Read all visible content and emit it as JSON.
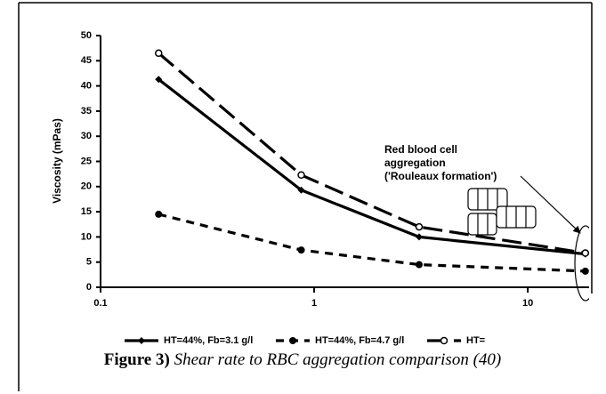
{
  "chart_data": {
    "type": "line",
    "y_label": "Viscosity (mPas)",
    "xscale": "log",
    "xlim": [
      0.1,
      19
    ],
    "xticks": [
      0.1,
      1,
      10
    ],
    "ylim": [
      0,
      50
    ],
    "yticks": [
      0,
      5,
      10,
      15,
      20,
      25,
      30,
      35,
      40,
      45,
      50
    ],
    "annotation": [
      "Red blood cell",
      "aggregation",
      "('Rouleaux formation')"
    ],
    "series": [
      {
        "name": "HT=44%, Fb=3.1 g/l",
        "color": "#000000",
        "dash": "solid",
        "marker": "diamond",
        "x": [
          0.187,
          0.87,
          3.1,
          18.6
        ],
        "values": [
          41.3,
          19.3,
          10,
          6.6
        ]
      },
      {
        "name": "HT=44%, Fb=4.7 g/l",
        "color": "#000000",
        "dash": "short",
        "marker": "filled-circle",
        "x": [
          0.187,
          0.87,
          3.1,
          18.6
        ],
        "values": [
          14.5,
          7.4,
          4.5,
          3.2
        ]
      },
      {
        "name": "HT=",
        "color": "#000000",
        "dash": "long",
        "marker": "open-circle",
        "x": [
          0.187,
          0.87,
          3.1,
          18.6
        ],
        "values": [
          46.5,
          22.3,
          12,
          6.8
        ]
      }
    ]
  },
  "caption": {
    "label": "Figure 3)",
    "text": "Shear rate to RBC aggregation comparison (40)"
  }
}
